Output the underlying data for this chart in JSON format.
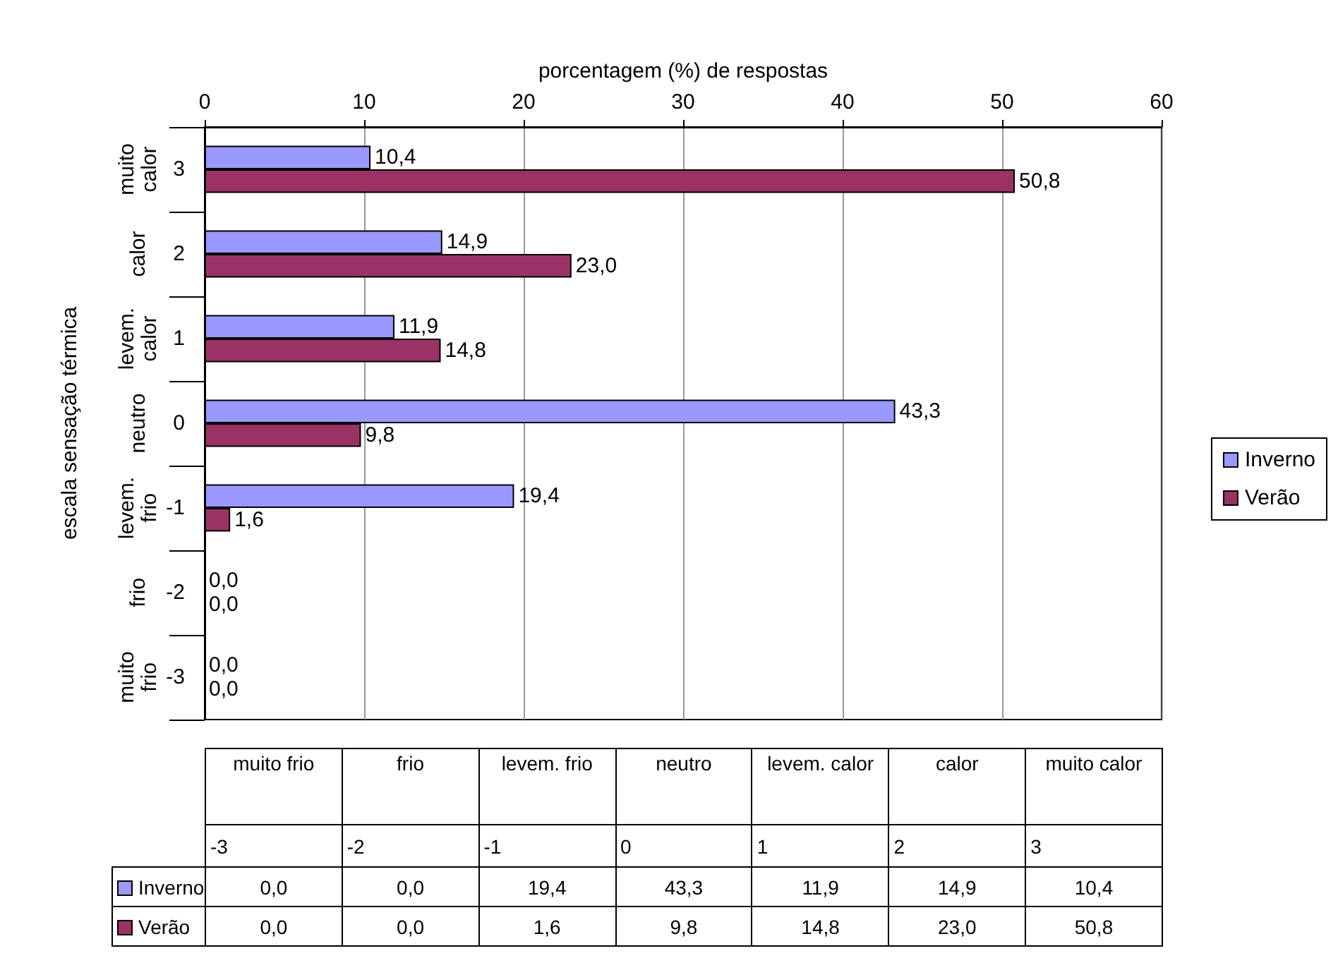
{
  "chart_data": {
    "type": "bar",
    "orientation": "horizontal",
    "xlabel": "porcentagem (%) de respostas",
    "ylabel": "escala sensação térmica",
    "categories": [
      "3",
      "2",
      "1",
      "0",
      "-1",
      "-2",
      "-3"
    ],
    "series": [
      {
        "name": "Inverno",
        "color": "#9999ff",
        "values": [
          10.4,
          14.9,
          11.9,
          43.3,
          19.4,
          0.0,
          0.0
        ],
        "value_labels": [
          "10,4",
          "14,9",
          "11,9",
          "43,3",
          "19,4",
          "0,0",
          "0,0"
        ]
      },
      {
        "name": "Verão",
        "color": "#993366",
        "values": [
          50.8,
          23.0,
          14.8,
          9.8,
          1.6,
          0.0,
          0.0
        ],
        "value_labels": [
          "50,8",
          "23,0",
          "14,8",
          "9,8",
          "1,6",
          "0,0",
          "0,0"
        ]
      }
    ],
    "annotations": [
      "muito calor",
      "calor",
      "levem. calor",
      "neutro",
      "levem. frio",
      "frio",
      "muito frio"
    ],
    "xlim": [
      0,
      60
    ],
    "xticks": [
      0,
      10,
      20,
      30,
      40,
      50,
      60
    ],
    "grid": "x",
    "legend": "right"
  }
}
